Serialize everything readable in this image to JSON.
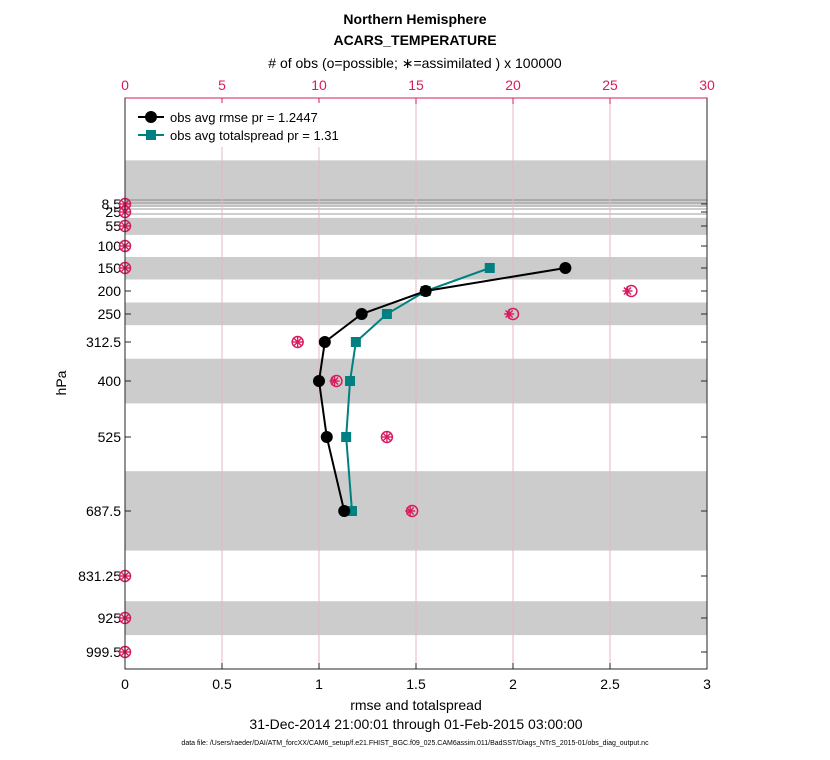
{
  "chart_data": {
    "type": "line",
    "title": "Northern Hemisphere",
    "subtitle": "ACARS_TEMPERATURE",
    "top_axis_label": "# of obs (o=possible; ∗=assimilated ) x 100000",
    "xlabel": "rmse and totalspread",
    "ylabel": "hPa",
    "date_range": "31-Dec-2014 21:00:01 through 01-Feb-2015 03:00:00",
    "data_file": "data file: /Users/raeder/DAI/ATM_forcXX/CAM6_setup/f.e21.FHIST_BGC.f09_025.CAM6assim.011/BadSST/Diags_NTrS_2015-01/obs_diag_output.nc",
    "xlim": [
      0,
      3
    ],
    "x_ticks": [
      "0",
      "0.5",
      "1",
      "1.5",
      "2",
      "2.5",
      "3"
    ],
    "top_xlim": [
      0,
      30
    ],
    "top_ticks": [
      "0",
      "5",
      "10",
      "15",
      "20",
      "25",
      "30"
    ],
    "y_ticks": [
      "8.5",
      "25",
      "55",
      "100",
      "150",
      "200",
      "250",
      "312.5",
      "400",
      "525",
      "687.5",
      "831.25",
      "925",
      "999.5"
    ],
    "shaded_bands_hPa": [
      [
        5,
        10
      ],
      [
        37.5,
        75
      ],
      [
        125,
        175
      ],
      [
        225,
        275
      ],
      [
        350,
        450
      ],
      [
        600,
        775
      ],
      [
        887.5,
        962.5
      ]
    ],
    "series": [
      {
        "name": "obs avg rmse",
        "legend": "obs avg rmse  pr = 1.2447",
        "color": "#000000",
        "marker": "circle",
        "points": [
          {
            "level": 150,
            "value": 2.27
          },
          {
            "level": 200,
            "value": 1.55
          },
          {
            "level": 250,
            "value": 1.22
          },
          {
            "level": 312.5,
            "value": 1.03
          },
          {
            "level": 400,
            "value": 1.0
          },
          {
            "level": 525,
            "value": 1.04
          },
          {
            "level": 687.5,
            "value": 1.13
          }
        ]
      },
      {
        "name": "obs avg totalspread",
        "legend": "obs avg totalspread  pr = 1.31",
        "color": "#008080",
        "marker": "square",
        "points": [
          {
            "level": 150,
            "value": 1.88
          },
          {
            "level": 200,
            "value": 1.55
          },
          {
            "level": 250,
            "value": 1.35
          },
          {
            "level": 312.5,
            "value": 1.19
          },
          {
            "level": 400,
            "value": 1.16
          },
          {
            "level": 525,
            "value": 1.14
          },
          {
            "level": 687.5,
            "value": 1.17
          }
        ]
      }
    ],
    "obs_counts_x100000": {
      "color": "#d81b60",
      "possible": [
        {
          "level": 8.5,
          "value": 0
        },
        {
          "level": 25,
          "value": 0
        },
        {
          "level": 55,
          "value": 0
        },
        {
          "level": 100,
          "value": 0
        },
        {
          "level": 150,
          "value": 0
        },
        {
          "level": 200,
          "value": 26.1
        },
        {
          "level": 250,
          "value": 20.0
        },
        {
          "level": 312.5,
          "value": 8.9
        },
        {
          "level": 400,
          "value": 10.9
        },
        {
          "level": 525,
          "value": 13.5
        },
        {
          "level": 687.5,
          "value": 14.8
        },
        {
          "level": 831.25,
          "value": 0
        },
        {
          "level": 925,
          "value": 0
        },
        {
          "level": 999.5,
          "value": 0
        }
      ],
      "assimilated": [
        {
          "level": 8.5,
          "value": 0
        },
        {
          "level": 25,
          "value": 0
        },
        {
          "level": 55,
          "value": 0
        },
        {
          "level": 100,
          "value": 0
        },
        {
          "level": 150,
          "value": 0
        },
        {
          "level": 200,
          "value": 25.9
        },
        {
          "level": 250,
          "value": 19.8
        },
        {
          "level": 312.5,
          "value": 8.9
        },
        {
          "level": 400,
          "value": 10.8
        },
        {
          "level": 525,
          "value": 13.5
        },
        {
          "level": 687.5,
          "value": 14.7
        },
        {
          "level": 831.25,
          "value": 0
        },
        {
          "level": 925,
          "value": 0
        },
        {
          "level": 999.5,
          "value": 0
        }
      ]
    }
  }
}
